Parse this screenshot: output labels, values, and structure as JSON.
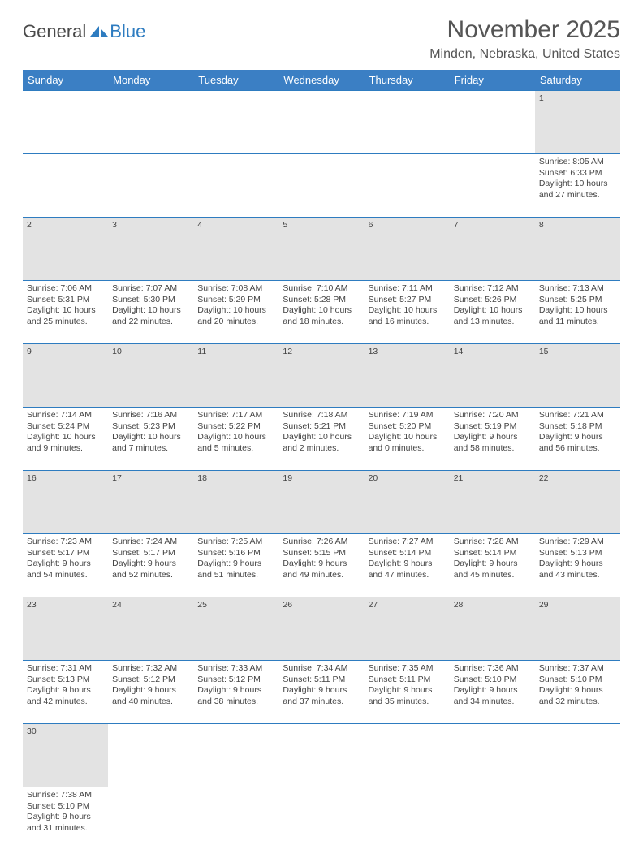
{
  "logo": {
    "general": "General",
    "blue": "Blue",
    "sail_color": "#2e7cc0"
  },
  "title": "November 2025",
  "location": "Minden, Nebraska, United States",
  "header_bg": "#3b7fc4",
  "border_color": "#2e7cc0",
  "daynum_bg": "#e3e3e3",
  "days": [
    "Sunday",
    "Monday",
    "Tuesday",
    "Wednesday",
    "Thursday",
    "Friday",
    "Saturday"
  ],
  "weeks": [
    [
      null,
      null,
      null,
      null,
      null,
      null,
      {
        "n": "1",
        "sunrise": "Sunrise: 8:05 AM",
        "sunset": "Sunset: 6:33 PM",
        "day1": "Daylight: 10 hours",
        "day2": "and 27 minutes."
      }
    ],
    [
      {
        "n": "2",
        "sunrise": "Sunrise: 7:06 AM",
        "sunset": "Sunset: 5:31 PM",
        "day1": "Daylight: 10 hours",
        "day2": "and 25 minutes."
      },
      {
        "n": "3",
        "sunrise": "Sunrise: 7:07 AM",
        "sunset": "Sunset: 5:30 PM",
        "day1": "Daylight: 10 hours",
        "day2": "and 22 minutes."
      },
      {
        "n": "4",
        "sunrise": "Sunrise: 7:08 AM",
        "sunset": "Sunset: 5:29 PM",
        "day1": "Daylight: 10 hours",
        "day2": "and 20 minutes."
      },
      {
        "n": "5",
        "sunrise": "Sunrise: 7:10 AM",
        "sunset": "Sunset: 5:28 PM",
        "day1": "Daylight: 10 hours",
        "day2": "and 18 minutes."
      },
      {
        "n": "6",
        "sunrise": "Sunrise: 7:11 AM",
        "sunset": "Sunset: 5:27 PM",
        "day1": "Daylight: 10 hours",
        "day2": "and 16 minutes."
      },
      {
        "n": "7",
        "sunrise": "Sunrise: 7:12 AM",
        "sunset": "Sunset: 5:26 PM",
        "day1": "Daylight: 10 hours",
        "day2": "and 13 minutes."
      },
      {
        "n": "8",
        "sunrise": "Sunrise: 7:13 AM",
        "sunset": "Sunset: 5:25 PM",
        "day1": "Daylight: 10 hours",
        "day2": "and 11 minutes."
      }
    ],
    [
      {
        "n": "9",
        "sunrise": "Sunrise: 7:14 AM",
        "sunset": "Sunset: 5:24 PM",
        "day1": "Daylight: 10 hours",
        "day2": "and 9 minutes."
      },
      {
        "n": "10",
        "sunrise": "Sunrise: 7:16 AM",
        "sunset": "Sunset: 5:23 PM",
        "day1": "Daylight: 10 hours",
        "day2": "and 7 minutes."
      },
      {
        "n": "11",
        "sunrise": "Sunrise: 7:17 AM",
        "sunset": "Sunset: 5:22 PM",
        "day1": "Daylight: 10 hours",
        "day2": "and 5 minutes."
      },
      {
        "n": "12",
        "sunrise": "Sunrise: 7:18 AM",
        "sunset": "Sunset: 5:21 PM",
        "day1": "Daylight: 10 hours",
        "day2": "and 2 minutes."
      },
      {
        "n": "13",
        "sunrise": "Sunrise: 7:19 AM",
        "sunset": "Sunset: 5:20 PM",
        "day1": "Daylight: 10 hours",
        "day2": "and 0 minutes."
      },
      {
        "n": "14",
        "sunrise": "Sunrise: 7:20 AM",
        "sunset": "Sunset: 5:19 PM",
        "day1": "Daylight: 9 hours",
        "day2": "and 58 minutes."
      },
      {
        "n": "15",
        "sunrise": "Sunrise: 7:21 AM",
        "sunset": "Sunset: 5:18 PM",
        "day1": "Daylight: 9 hours",
        "day2": "and 56 minutes."
      }
    ],
    [
      {
        "n": "16",
        "sunrise": "Sunrise: 7:23 AM",
        "sunset": "Sunset: 5:17 PM",
        "day1": "Daylight: 9 hours",
        "day2": "and 54 minutes."
      },
      {
        "n": "17",
        "sunrise": "Sunrise: 7:24 AM",
        "sunset": "Sunset: 5:17 PM",
        "day1": "Daylight: 9 hours",
        "day2": "and 52 minutes."
      },
      {
        "n": "18",
        "sunrise": "Sunrise: 7:25 AM",
        "sunset": "Sunset: 5:16 PM",
        "day1": "Daylight: 9 hours",
        "day2": "and 51 minutes."
      },
      {
        "n": "19",
        "sunrise": "Sunrise: 7:26 AM",
        "sunset": "Sunset: 5:15 PM",
        "day1": "Daylight: 9 hours",
        "day2": "and 49 minutes."
      },
      {
        "n": "20",
        "sunrise": "Sunrise: 7:27 AM",
        "sunset": "Sunset: 5:14 PM",
        "day1": "Daylight: 9 hours",
        "day2": "and 47 minutes."
      },
      {
        "n": "21",
        "sunrise": "Sunrise: 7:28 AM",
        "sunset": "Sunset: 5:14 PM",
        "day1": "Daylight: 9 hours",
        "day2": "and 45 minutes."
      },
      {
        "n": "22",
        "sunrise": "Sunrise: 7:29 AM",
        "sunset": "Sunset: 5:13 PM",
        "day1": "Daylight: 9 hours",
        "day2": "and 43 minutes."
      }
    ],
    [
      {
        "n": "23",
        "sunrise": "Sunrise: 7:31 AM",
        "sunset": "Sunset: 5:13 PM",
        "day1": "Daylight: 9 hours",
        "day2": "and 42 minutes."
      },
      {
        "n": "24",
        "sunrise": "Sunrise: 7:32 AM",
        "sunset": "Sunset: 5:12 PM",
        "day1": "Daylight: 9 hours",
        "day2": "and 40 minutes."
      },
      {
        "n": "25",
        "sunrise": "Sunrise: 7:33 AM",
        "sunset": "Sunset: 5:12 PM",
        "day1": "Daylight: 9 hours",
        "day2": "and 38 minutes."
      },
      {
        "n": "26",
        "sunrise": "Sunrise: 7:34 AM",
        "sunset": "Sunset: 5:11 PM",
        "day1": "Daylight: 9 hours",
        "day2": "and 37 minutes."
      },
      {
        "n": "27",
        "sunrise": "Sunrise: 7:35 AM",
        "sunset": "Sunset: 5:11 PM",
        "day1": "Daylight: 9 hours",
        "day2": "and 35 minutes."
      },
      {
        "n": "28",
        "sunrise": "Sunrise: 7:36 AM",
        "sunset": "Sunset: 5:10 PM",
        "day1": "Daylight: 9 hours",
        "day2": "and 34 minutes."
      },
      {
        "n": "29",
        "sunrise": "Sunrise: 7:37 AM",
        "sunset": "Sunset: 5:10 PM",
        "day1": "Daylight: 9 hours",
        "day2": "and 32 minutes."
      }
    ],
    [
      {
        "n": "30",
        "sunrise": "Sunrise: 7:38 AM",
        "sunset": "Sunset: 5:10 PM",
        "day1": "Daylight: 9 hours",
        "day2": "and 31 minutes."
      },
      null,
      null,
      null,
      null,
      null,
      null
    ]
  ]
}
